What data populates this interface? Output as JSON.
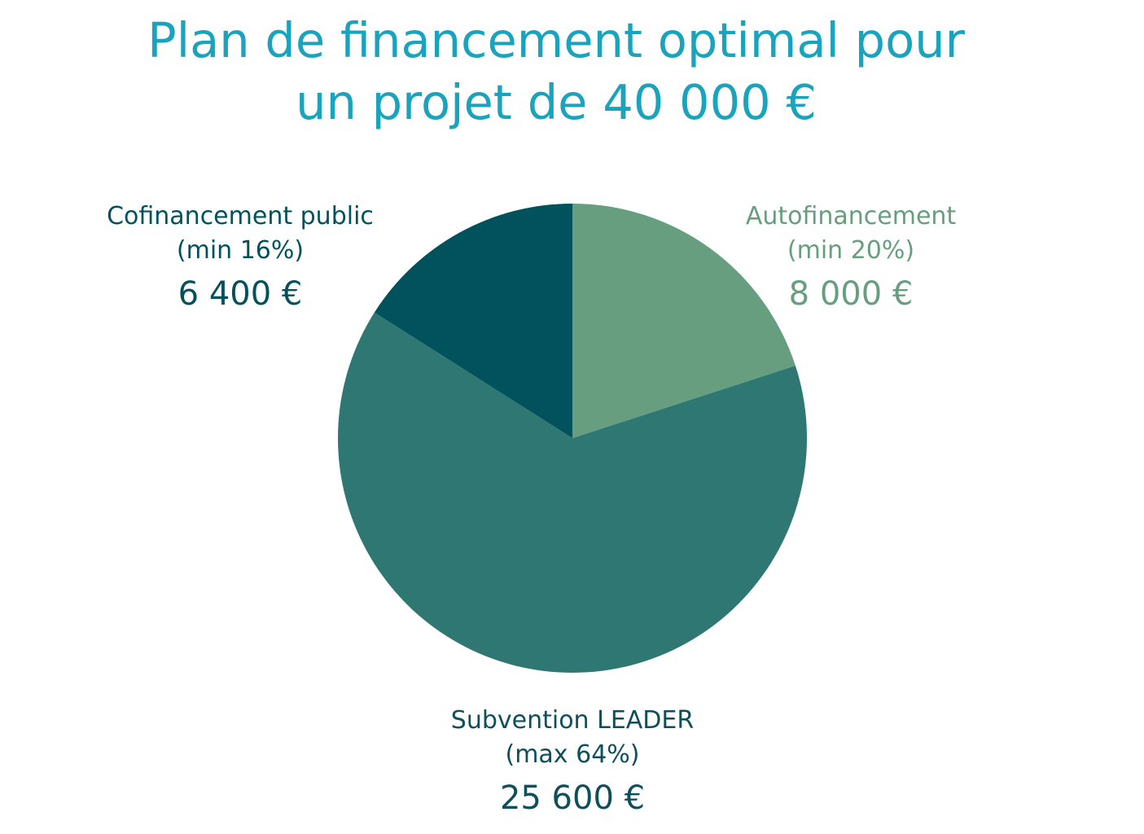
{
  "title": {
    "line1": "Plan de financement optimal pour",
    "line2": "un projet de 40 000 €"
  },
  "chart_data": {
    "type": "pie",
    "title": "Plan de financement optimal pour un projet de 40 000 €",
    "slices": [
      {
        "name": "Autofinancement",
        "note": "(min 20%)",
        "amount": "8 000 €",
        "value": 8000,
        "percent": 20,
        "color": "#679e7f"
      },
      {
        "name": "Subvention LEADER",
        "note": "(max 64%)",
        "amount": "25 600 €",
        "value": 25600,
        "percent": 64,
        "color": "#2e7772"
      },
      {
        "name": "Cofinancement public",
        "note": "(min 16%)",
        "amount": "6 400 €",
        "value": 6400,
        "percent": 16,
        "color": "#02525e"
      }
    ]
  }
}
